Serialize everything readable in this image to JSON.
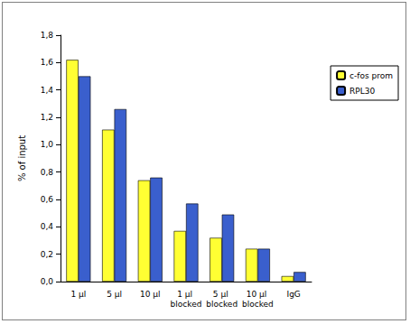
{
  "chart_data": {
    "type": "bar",
    "categories": [
      "1 µl",
      "5 µl",
      "10 µl",
      "1 µl blocked",
      "5 µl blocked",
      "10 µl blocked",
      "IgG"
    ],
    "series": [
      {
        "name": "c-fos prom",
        "color": "#ffff33",
        "values": [
          1.62,
          1.11,
          0.74,
          0.37,
          0.32,
          0.24,
          0.04
        ]
      },
      {
        "name": "RPL30",
        "color": "#3a5fcd",
        "values": [
          1.5,
          1.26,
          0.76,
          0.57,
          0.49,
          0.24,
          0.07
        ]
      }
    ],
    "y_label": "% of input",
    "ylim": [
      0,
      1.8
    ],
    "yticks": [
      {
        "value": 0,
        "label": "0,0"
      },
      {
        "value": 0.2,
        "label": "0,2"
      },
      {
        "value": 0.4,
        "label": "0,4"
      },
      {
        "value": 0.6,
        "label": "0,6"
      },
      {
        "value": 0.8,
        "label": "0,8"
      },
      {
        "value": 1.0,
        "label": "1,0"
      },
      {
        "value": 1.2,
        "label": "1,2"
      },
      {
        "value": 1.4,
        "label": "1,4"
      },
      {
        "value": 1.6,
        "label": "1,6"
      },
      {
        "value": 1.8,
        "label": "1,8"
      }
    ],
    "grid": false,
    "legend": "right"
  }
}
